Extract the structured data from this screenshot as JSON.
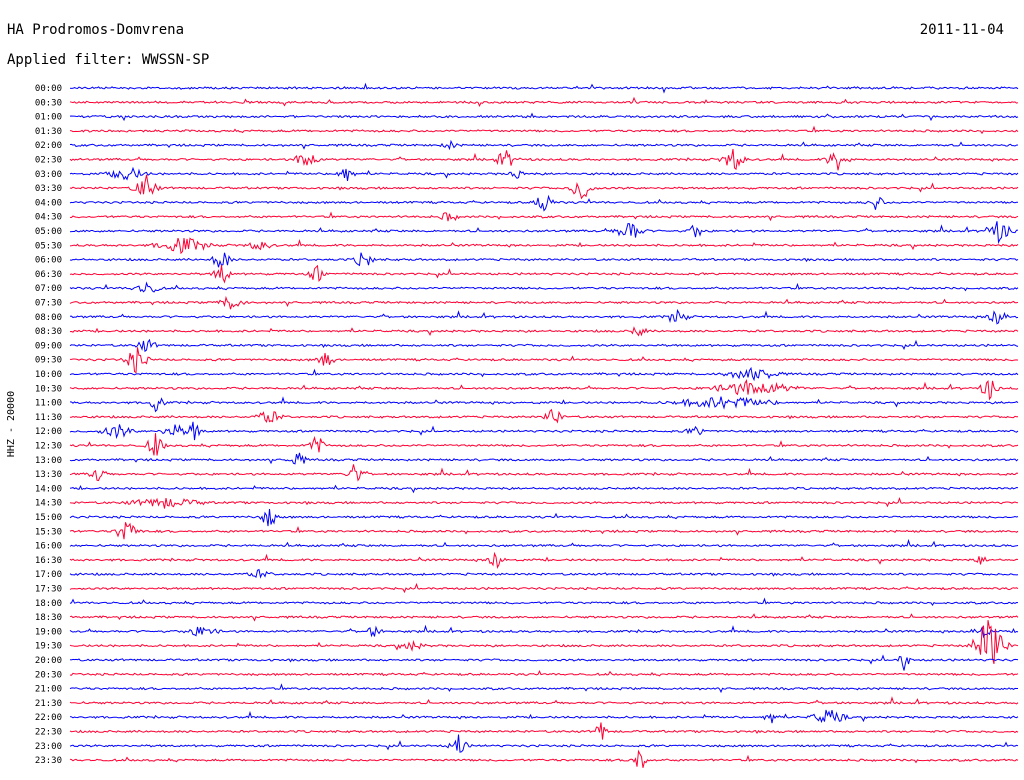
{
  "header": {
    "station": "HA Prodromos-Domvrena",
    "date": "2011-11-04",
    "filter": "Applied filter: WWSSN-SP"
  },
  "chart_data": {
    "type": "line",
    "title": "",
    "ylabel": "HHZ - 20000",
    "xlabel": "",
    "trace_colors": [
      "#0000ff",
      "#ff0033"
    ],
    "time_labels": [
      "00:00",
      "00:30",
      "01:00",
      "01:30",
      "02:00",
      "02:30",
      "03:00",
      "03:30",
      "04:00",
      "04:30",
      "05:00",
      "05:30",
      "06:00",
      "06:30",
      "07:00",
      "07:30",
      "08:00",
      "08:30",
      "09:00",
      "09:30",
      "10:00",
      "10:30",
      "11:00",
      "11:30",
      "12:00",
      "12:30",
      "13:00",
      "13:30",
      "14:00",
      "14:30",
      "15:00",
      "15:30",
      "16:00",
      "16:30",
      "17:00",
      "17:30",
      "18:00",
      "18:30",
      "19:00",
      "19:30",
      "20:00",
      "20:30",
      "21:00",
      "21:30",
      "22:00",
      "22:30",
      "23:00",
      "23:30"
    ],
    "events": [
      {
        "row": 4,
        "x": 0.4,
        "amp": 5,
        "w": 0.006
      },
      {
        "row": 5,
        "x": 0.25,
        "amp": 12,
        "w": 0.008
      },
      {
        "row": 5,
        "x": 0.46,
        "amp": 10,
        "w": 0.008
      },
      {
        "row": 5,
        "x": 0.7,
        "amp": 13,
        "w": 0.008
      },
      {
        "row": 5,
        "x": 0.81,
        "amp": 12,
        "w": 0.008
      },
      {
        "row": 6,
        "x": 0.06,
        "amp": 8,
        "w": 0.014
      },
      {
        "row": 6,
        "x": 0.29,
        "amp": 12,
        "w": 0.006
      },
      {
        "row": 6,
        "x": 0.47,
        "amp": 6,
        "w": 0.006
      },
      {
        "row": 7,
        "x": 0.08,
        "amp": 16,
        "w": 0.008
      },
      {
        "row": 7,
        "x": 0.54,
        "amp": 14,
        "w": 0.008
      },
      {
        "row": 8,
        "x": 0.5,
        "amp": 14,
        "w": 0.006
      },
      {
        "row": 8,
        "x": 0.85,
        "amp": 10,
        "w": 0.006
      },
      {
        "row": 9,
        "x": 0.4,
        "amp": 8,
        "w": 0.006
      },
      {
        "row": 10,
        "x": 0.59,
        "amp": 12,
        "w": 0.01
      },
      {
        "row": 10,
        "x": 0.66,
        "amp": 8,
        "w": 0.006
      },
      {
        "row": 10,
        "x": 0.98,
        "amp": 12,
        "w": 0.01
      },
      {
        "row": 11,
        "x": 0.12,
        "amp": 9,
        "w": 0.02
      },
      {
        "row": 11,
        "x": 0.2,
        "amp": 6,
        "w": 0.01
      },
      {
        "row": 12,
        "x": 0.16,
        "amp": 14,
        "w": 0.006
      },
      {
        "row": 12,
        "x": 0.31,
        "amp": 12,
        "w": 0.006
      },
      {
        "row": 13,
        "x": 0.16,
        "amp": 12,
        "w": 0.006
      },
      {
        "row": 13,
        "x": 0.26,
        "amp": 10,
        "w": 0.006
      },
      {
        "row": 14,
        "x": 0.08,
        "amp": 8,
        "w": 0.01
      },
      {
        "row": 15,
        "x": 0.17,
        "amp": 8,
        "w": 0.01
      },
      {
        "row": 16,
        "x": 0.64,
        "amp": 9,
        "w": 0.008
      },
      {
        "row": 16,
        "x": 0.98,
        "amp": 12,
        "w": 0.008
      },
      {
        "row": 17,
        "x": 0.6,
        "amp": 7,
        "w": 0.006
      },
      {
        "row": 18,
        "x": 0.08,
        "amp": 8,
        "w": 0.008
      },
      {
        "row": 19,
        "x": 0.07,
        "amp": 14,
        "w": 0.008
      },
      {
        "row": 19,
        "x": 0.27,
        "amp": 10,
        "w": 0.006
      },
      {
        "row": 20,
        "x": 0.72,
        "amp": 8,
        "w": 0.02
      },
      {
        "row": 21,
        "x": 0.72,
        "amp": 9,
        "w": 0.03
      },
      {
        "row": 21,
        "x": 0.97,
        "amp": 14,
        "w": 0.006
      },
      {
        "row": 22,
        "x": 0.09,
        "amp": 10,
        "w": 0.006
      },
      {
        "row": 22,
        "x": 0.69,
        "amp": 7,
        "w": 0.04
      },
      {
        "row": 23,
        "x": 0.21,
        "amp": 8,
        "w": 0.01
      },
      {
        "row": 23,
        "x": 0.51,
        "amp": 12,
        "w": 0.006
      },
      {
        "row": 24,
        "x": 0.05,
        "amp": 8,
        "w": 0.012
      },
      {
        "row": 24,
        "x": 0.11,
        "amp": 10,
        "w": 0.008
      },
      {
        "row": 24,
        "x": 0.13,
        "amp": 12,
        "w": 0.006
      },
      {
        "row": 24,
        "x": 0.66,
        "amp": 6,
        "w": 0.008
      },
      {
        "row": 25,
        "x": 0.09,
        "amp": 14,
        "w": 0.006
      },
      {
        "row": 25,
        "x": 0.26,
        "amp": 12,
        "w": 0.006
      },
      {
        "row": 26,
        "x": 0.24,
        "amp": 10,
        "w": 0.006
      },
      {
        "row": 27,
        "x": 0.03,
        "amp": 10,
        "w": 0.006
      },
      {
        "row": 27,
        "x": 0.3,
        "amp": 12,
        "w": 0.006
      },
      {
        "row": 29,
        "x": 0.1,
        "amp": 6,
        "w": 0.03
      },
      {
        "row": 30,
        "x": 0.21,
        "amp": 12,
        "w": 0.006
      },
      {
        "row": 31,
        "x": 0.06,
        "amp": 14,
        "w": 0.008
      },
      {
        "row": 33,
        "x": 0.45,
        "amp": 12,
        "w": 0.006
      },
      {
        "row": 33,
        "x": 0.96,
        "amp": 6,
        "w": 0.006
      },
      {
        "row": 34,
        "x": 0.2,
        "amp": 5,
        "w": 0.01
      },
      {
        "row": 38,
        "x": 0.14,
        "amp": 7,
        "w": 0.012
      },
      {
        "row": 38,
        "x": 0.32,
        "amp": 7,
        "w": 0.006
      },
      {
        "row": 38,
        "x": 0.96,
        "amp": 9,
        "w": 0.008
      },
      {
        "row": 39,
        "x": 0.36,
        "amp": 6,
        "w": 0.01
      },
      {
        "row": 39,
        "x": 0.97,
        "amp": 34,
        "w": 0.01
      },
      {
        "row": 40,
        "x": 0.88,
        "amp": 20,
        "w": 0.003
      },
      {
        "row": 44,
        "x": 0.74,
        "amp": 7,
        "w": 0.006
      },
      {
        "row": 44,
        "x": 0.8,
        "amp": 9,
        "w": 0.012
      },
      {
        "row": 45,
        "x": 0.56,
        "amp": 14,
        "w": 0.004
      },
      {
        "row": 46,
        "x": 0.41,
        "amp": 14,
        "w": 0.006
      },
      {
        "row": 47,
        "x": 0.6,
        "amp": 14,
        "w": 0.006
      }
    ]
  }
}
